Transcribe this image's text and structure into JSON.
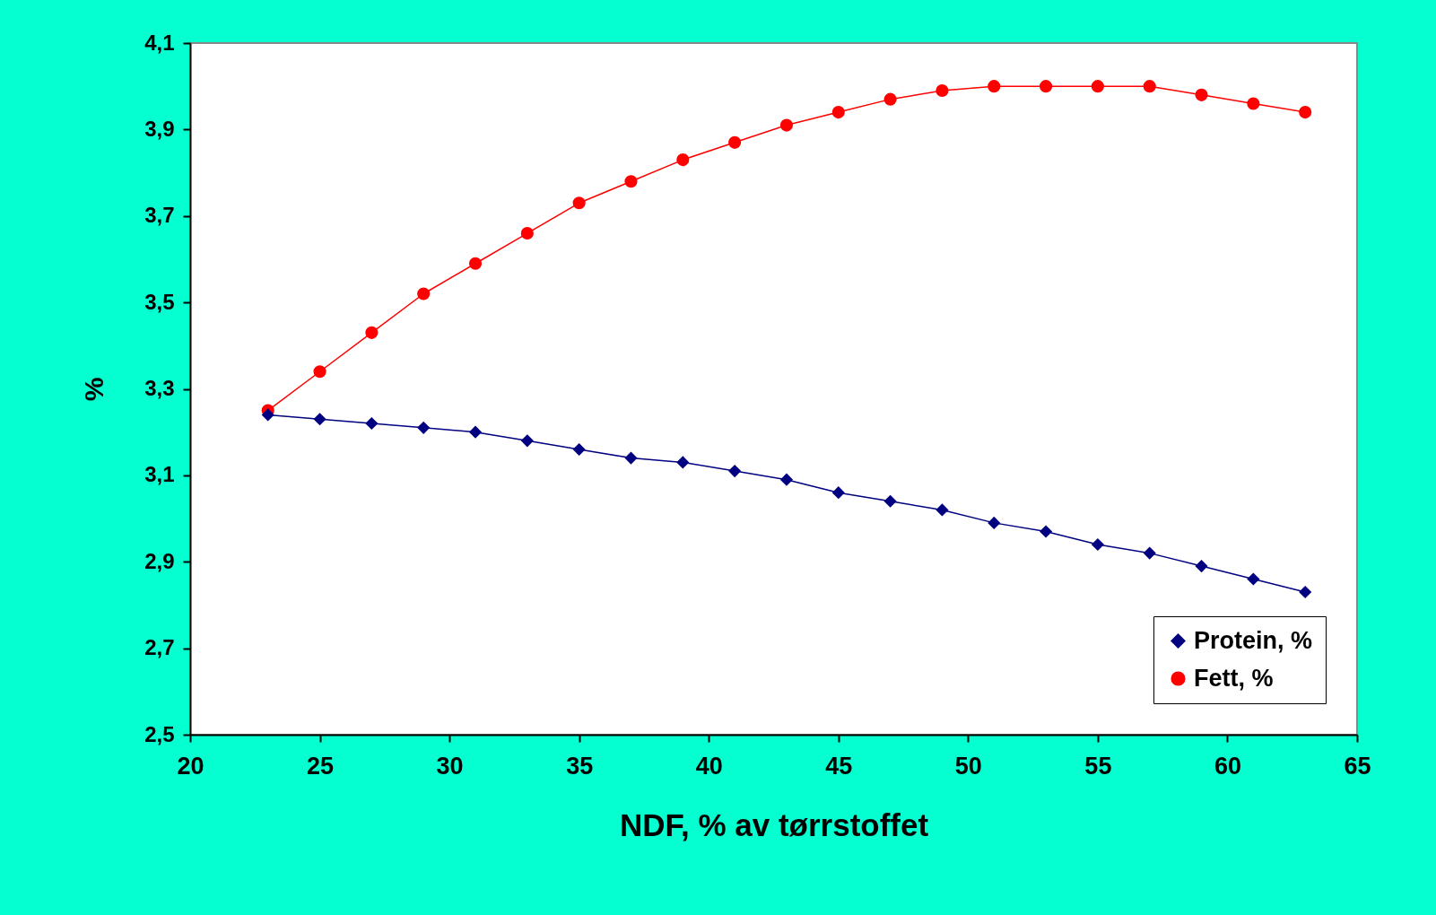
{
  "chart_data": {
    "type": "line",
    "xlabel": "NDF, % av tørrstoffet",
    "ylabel": "%",
    "x": [
      23,
      25,
      27,
      29,
      31,
      33,
      35,
      37,
      39,
      41,
      43,
      45,
      47,
      49,
      51,
      53,
      55,
      57,
      59,
      61,
      63
    ],
    "series": [
      {
        "name": "Protein, %",
        "color": "#000080",
        "marker": "diamond",
        "values": [
          3.24,
          3.23,
          3.22,
          3.21,
          3.2,
          3.18,
          3.16,
          3.14,
          3.13,
          3.11,
          3.09,
          3.06,
          3.04,
          3.02,
          2.99,
          2.97,
          2.94,
          2.92,
          2.89,
          2.86,
          2.83
        ]
      },
      {
        "name": "Fett, %",
        "color": "#ff0000",
        "marker": "circle",
        "values": [
          3.25,
          3.34,
          3.43,
          3.52,
          3.59,
          3.66,
          3.73,
          3.78,
          3.83,
          3.87,
          3.91,
          3.94,
          3.97,
          3.99,
          4.0,
          4.0,
          4.0,
          4.0,
          3.98,
          3.96,
          3.94
        ]
      }
    ],
    "xlim": [
      20,
      65
    ],
    "xticks": [
      20,
      25,
      30,
      35,
      40,
      45,
      50,
      55,
      60,
      65
    ],
    "ylim": [
      2.5,
      4.1
    ],
    "yticks": [
      {
        "value": 2.5,
        "label": "2,5"
      },
      {
        "value": 2.7,
        "label": "2,7"
      },
      {
        "value": 2.9,
        "label": "2,9"
      },
      {
        "value": 3.1,
        "label": "3,1"
      },
      {
        "value": 3.3,
        "label": "3,3"
      },
      {
        "value": 3.5,
        "label": "3,5"
      },
      {
        "value": 3.7,
        "label": "3,7"
      },
      {
        "value": 3.9,
        "label": "3,9"
      },
      {
        "value": 4.1,
        "label": "4,1"
      }
    ],
    "legend": "bottom right",
    "line_style": "solid",
    "grid": false
  }
}
